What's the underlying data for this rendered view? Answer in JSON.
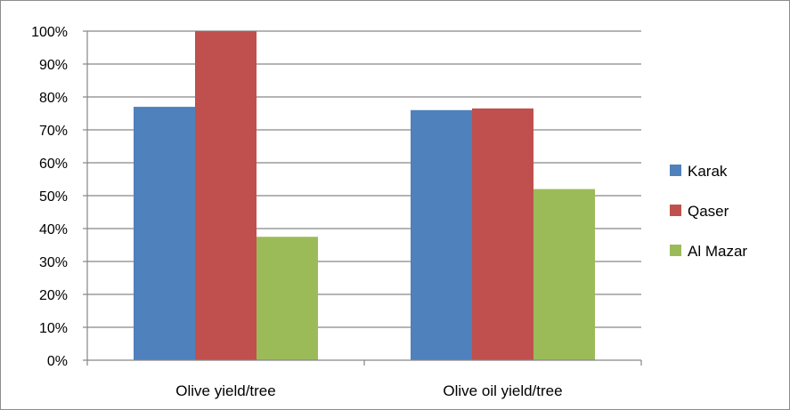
{
  "chart_data": {
    "type": "bar",
    "title": "",
    "xlabel": "",
    "ylabel": "",
    "categories": [
      "Olive yield/tree",
      "Olive oil yield/tree"
    ],
    "series": [
      {
        "name": "Karak",
        "color": "#4f81bd",
        "values": [
          77,
          76
        ]
      },
      {
        "name": "Qaser",
        "color": "#c0504d",
        "values": [
          100,
          76.5
        ]
      },
      {
        "name": "Al Mazar",
        "color": "#9bbb59",
        "values": [
          37.5,
          52
        ]
      }
    ],
    "ylim": [
      0,
      100
    ],
    "yticks": [
      "0%",
      "10%",
      "20%",
      "30%",
      "40%",
      "50%",
      "60%",
      "70%",
      "80%",
      "90%",
      "100%"
    ],
    "grid": true,
    "legend_position": "right"
  }
}
